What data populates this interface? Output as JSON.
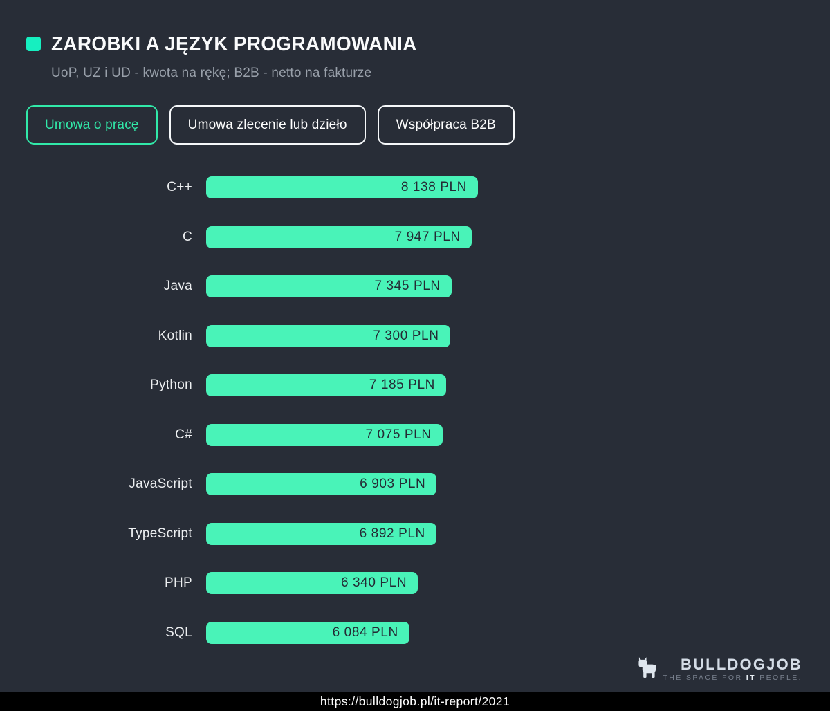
{
  "header": {
    "title": "ZAROBKI A JĘZYK PROGRAMOWANIA",
    "subtitle": "UoP, UZ i UD - kwota na rękę; B2B - netto na fakturze"
  },
  "tabs": [
    {
      "label": "Umowa o pracę",
      "active": true
    },
    {
      "label": "Umowa zlecenie lub dzieło",
      "active": false
    },
    {
      "label": "Współpraca B2B",
      "active": false
    }
  ],
  "chart_data": {
    "type": "bar",
    "orientation": "horizontal",
    "title": "ZAROBKI A JĘZYK PROGRAMOWANIA",
    "categories": [
      "C++",
      "C",
      "Java",
      "Kotlin",
      "Python",
      "C#",
      "JavaScript",
      "TypeScript",
      "PHP",
      "SQL"
    ],
    "values": [
      8138,
      7947,
      7345,
      7300,
      7185,
      7075,
      6903,
      6892,
      6340,
      6084
    ],
    "value_labels": [
      "8 138 PLN",
      "7 947 PLN",
      "7 345 PLN",
      "7 300 PLN",
      "7 185 PLN",
      "7 075 PLN",
      "6 903 PLN",
      "6 892 PLN",
      "6 340 PLN",
      "6 084 PLN"
    ],
    "unit": "PLN",
    "xlim": [
      0,
      8138
    ],
    "grid": false,
    "legend": false,
    "value_labels_position": "inside-end"
  },
  "footer": {
    "brand_name": "BULLDOGJOB",
    "tagline_prefix": "THE SPACE FOR ",
    "tagline_bold": "IT",
    "tagline_suffix": " PEOPLE.",
    "url": "https://bulldogjob.pl/it-report/2021"
  },
  "colors": {
    "background": "#282D37",
    "accent_square": "#16EFC0",
    "bar_color": "#49F3B8",
    "bar_text": "#242A34",
    "tab_active": "#31E9A9",
    "tab_inactive_border": "#F6F8FA",
    "title_text": "#FAFBFC",
    "subtitle_text": "#99A0AA"
  }
}
